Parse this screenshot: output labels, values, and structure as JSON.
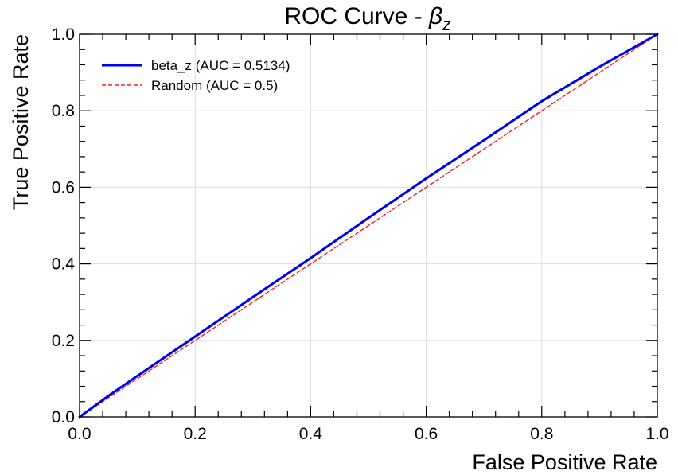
{
  "chart_data": {
    "type": "line",
    "title": "ROC Curve - ",
    "title_symbol": "β",
    "title_subscript": "z",
    "xlabel": "False Positive Rate",
    "ylabel": "True Positive Rate",
    "xlim": [
      0.0,
      1.0
    ],
    "ylim": [
      0.0,
      1.0
    ],
    "x_ticks": [
      "0.0",
      "0.2",
      "0.4",
      "0.6",
      "0.8",
      "1.0"
    ],
    "y_ticks": [
      "0.0",
      "0.2",
      "0.4",
      "0.6",
      "0.8",
      "1.0"
    ],
    "grid": true,
    "legend_position": "top-left",
    "series": [
      {
        "name": "beta_z (AUC = 0.5134)",
        "color": "#0000ee",
        "style": "solid",
        "x": [
          0.0,
          0.05,
          0.1,
          0.2,
          0.3,
          0.4,
          0.5,
          0.6,
          0.7,
          0.8,
          0.9,
          1.0
        ],
        "y": [
          0.0,
          0.055,
          0.107,
          0.21,
          0.313,
          0.415,
          0.52,
          0.623,
          0.723,
          0.825,
          0.915,
          1.0
        ]
      },
      {
        "name": "Random (AUC = 0.5)",
        "color": "#ee2222",
        "style": "dashed",
        "x": [
          0.0,
          1.0
        ],
        "y": [
          0.0,
          1.0
        ]
      }
    ]
  }
}
